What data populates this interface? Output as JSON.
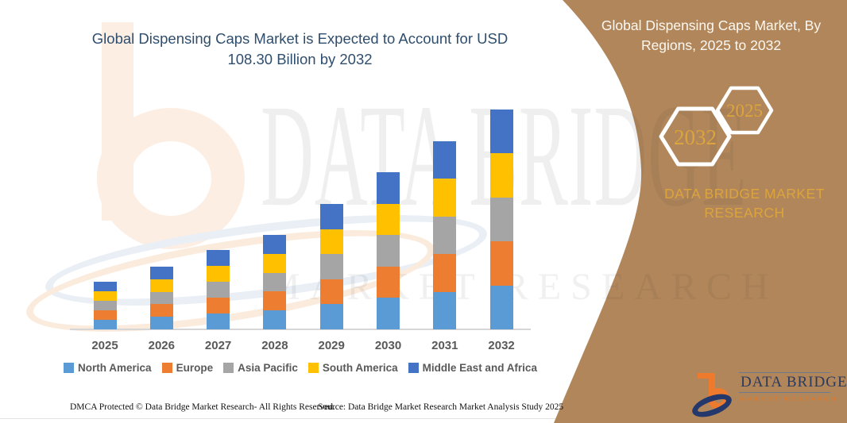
{
  "title": {
    "text": "Global Dispensing Caps Market is Expected to Account for USD 108.30 Billion by 2032",
    "color": "#2F4E6E"
  },
  "right_panel": {
    "heading": "Global Dispensing Caps Market, By Regions, 2025 to 2032",
    "background_color": "#B1865A",
    "hexagons": [
      {
        "label": "2032"
      },
      {
        "label": "2025"
      }
    ],
    "brand_text": "DATA BRIDGE MARKET RESEARCH",
    "gold_color": "#DBA43C"
  },
  "chart_data": {
    "type": "bar",
    "stacked": true,
    "unit": "USD Billion",
    "categories": [
      "2025",
      "2026",
      "2027",
      "2028",
      "2029",
      "2030",
      "2031",
      "2032"
    ],
    "series": [
      {
        "name": "North America",
        "color": "#5B9BD5",
        "values": [
          4.7,
          6.18,
          7.82,
          9.3,
          12.36,
          15.48,
          18.54,
          21.66
        ]
      },
      {
        "name": "Europe",
        "color": "#ED7D31",
        "values": [
          4.7,
          6.18,
          7.82,
          9.3,
          12.36,
          15.48,
          18.54,
          21.66
        ]
      },
      {
        "name": "Asia Pacific",
        "color": "#A5A5A5",
        "values": [
          4.7,
          6.18,
          7.82,
          9.3,
          12.36,
          15.48,
          18.54,
          21.66
        ]
      },
      {
        "name": "South America",
        "color": "#FFC000",
        "values": [
          4.7,
          6.18,
          7.82,
          9.3,
          12.36,
          15.48,
          18.54,
          21.66
        ]
      },
      {
        "name": "Middle East and Africa",
        "color": "#4472C4",
        "values": [
          4.7,
          6.18,
          7.82,
          9.3,
          12.36,
          15.48,
          18.54,
          21.66
        ]
      }
    ],
    "totals": [
      23.5,
      30.9,
      39.1,
      46.5,
      61.8,
      77.4,
      92.7,
      108.3
    ],
    "highlight_value": "USD 108.30 Billion by 2032",
    "gridlines": false,
    "legend_position": "bottom"
  },
  "watermark": {
    "line1": "DATA BRIDGE",
    "line2": "MARKET RESEARCH"
  },
  "logo": {
    "name": "DATA BRIDGE",
    "subtitle": "MARKET RESEARCH"
  },
  "footer": {
    "dmca": "DMCA Protected © Data Bridge Market Research- All Rights Reserved.",
    "source": "Source: Data Bridge Market Research Market Analysis Study 2025"
  }
}
